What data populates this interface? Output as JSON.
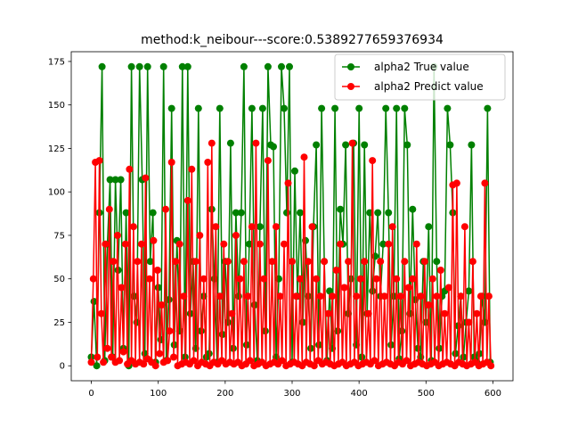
{
  "chart_data": {
    "type": "line",
    "title": "method:k_neibour---score:0.5389277659376934",
    "xlabel": "",
    "ylabel": "",
    "xlim": [
      -30,
      630
    ],
    "ylim": [
      -8.6,
      180.6
    ],
    "xticks": [
      0,
      100,
      200,
      300,
      400,
      500,
      600
    ],
    "yticks": [
      0,
      25,
      50,
      75,
      100,
      125,
      150,
      175
    ],
    "xtick_labels": [
      "0",
      "100",
      "200",
      "300",
      "400",
      "500",
      "600"
    ],
    "ytick_labels": [
      "0",
      "25",
      "50",
      "75",
      "100",
      "125",
      "150",
      "175"
    ],
    "grid": false,
    "legend_position": "top-right",
    "series": [
      {
        "name": "alpha2 True value",
        "color": "#008000",
        "marker": "circle",
        "x": [
          0,
          4,
          8,
          12,
          16,
          20,
          24,
          28,
          32,
          36,
          40,
          44,
          48,
          52,
          56,
          60,
          64,
          68,
          72,
          76,
          80,
          84,
          88,
          92,
          96,
          100,
          104,
          108,
          112,
          116,
          120,
          124,
          128,
          132,
          136,
          140,
          144,
          148,
          152,
          156,
          160,
          164,
          168,
          172,
          176,
          180,
          184,
          188,
          192,
          196,
          200,
          204,
          208,
          212,
          216,
          220,
          224,
          228,
          232,
          236,
          240,
          244,
          248,
          252,
          256,
          260,
          264,
          268,
          272,
          276,
          280,
          284,
          288,
          292,
          296,
          300,
          304,
          308,
          312,
          316,
          320,
          324,
          328,
          332,
          336,
          340,
          344,
          348,
          352,
          356,
          360,
          364,
          368,
          372,
          376,
          380,
          384,
          388,
          392,
          396,
          400,
          404,
          408,
          412,
          416,
          420,
          424,
          428,
          432,
          436,
          440,
          444,
          448,
          452,
          456,
          460,
          464,
          468,
          472,
          476,
          480,
          484,
          488,
          492,
          496,
          500,
          504,
          508,
          512,
          516,
          520,
          524,
          528,
          532,
          536,
          540,
          544,
          548,
          552,
          556,
          560,
          564,
          568,
          572,
          576,
          580,
          584,
          588,
          592,
          596
        ],
        "values": [
          5,
          37,
          0,
          88,
          172,
          3,
          70,
          107,
          5,
          107,
          55,
          107,
          10,
          88,
          0,
          172,
          40,
          25,
          172,
          107,
          7,
          172,
          60,
          88,
          2,
          45,
          15,
          172,
          3,
          38,
          148,
          12,
          72,
          20,
          172,
          5,
          172,
          30,
          60,
          10,
          148,
          20,
          40,
          5,
          7,
          90,
          50,
          2,
          148,
          18,
          60,
          25,
          128,
          10,
          88,
          40,
          88,
          172,
          12,
          70,
          148,
          35,
          3,
          80,
          148,
          20,
          172,
          127,
          126,
          5,
          50,
          172,
          148,
          88,
          172,
          2,
          112,
          40,
          88,
          25,
          72,
          40,
          10,
          80,
          127,
          12,
          148,
          60,
          3,
          43,
          10,
          148,
          20,
          90,
          70,
          127,
          30,
          50,
          128,
          12,
          148,
          5,
          127,
          30,
          88,
          43,
          63,
          88,
          40,
          70,
          148,
          88,
          12,
          40,
          148,
          4,
          20,
          148,
          127,
          30,
          90,
          38,
          10,
          5,
          60,
          25,
          80,
          3,
          172,
          60,
          10,
          40,
          43,
          148,
          127,
          88,
          7,
          23,
          40,
          5,
          25,
          43,
          127,
          5,
          2,
          7,
          40,
          25,
          148,
          2
        ]
      },
      {
        "name": "alpha2 Predict value",
        "color": "#ff0000",
        "marker": "circle",
        "x": [
          0,
          3,
          6,
          9,
          12,
          15,
          18,
          21,
          24,
          27,
          30,
          33,
          36,
          39,
          42,
          45,
          48,
          51,
          54,
          57,
          60,
          63,
          66,
          69,
          72,
          75,
          78,
          81,
          84,
          87,
          90,
          93,
          96,
          99,
          102,
          105,
          108,
          111,
          114,
          117,
          120,
          123,
          126,
          129,
          132,
          135,
          138,
          141,
          144,
          147,
          150,
          153,
          156,
          159,
          162,
          165,
          168,
          171,
          174,
          177,
          180,
          183,
          186,
          189,
          192,
          195,
          198,
          201,
          204,
          207,
          210,
          213,
          216,
          219,
          222,
          225,
          228,
          231,
          234,
          237,
          240,
          243,
          246,
          249,
          252,
          255,
          258,
          261,
          264,
          267,
          270,
          273,
          276,
          279,
          282,
          285,
          288,
          291,
          294,
          297,
          300,
          303,
          306,
          309,
          312,
          315,
          318,
          321,
          324,
          327,
          330,
          333,
          336,
          339,
          342,
          345,
          348,
          351,
          354,
          357,
          360,
          363,
          366,
          369,
          372,
          375,
          378,
          381,
          384,
          387,
          390,
          393,
          396,
          399,
          402,
          405,
          408,
          411,
          414,
          417,
          420,
          423,
          426,
          429,
          432,
          435,
          438,
          441,
          444,
          447,
          450,
          453,
          456,
          459,
          462,
          465,
          468,
          471,
          474,
          477,
          480,
          483,
          486,
          489,
          492,
          495,
          498,
          501,
          504,
          507,
          510,
          513,
          516,
          519,
          522,
          525,
          528,
          531,
          534,
          537,
          540,
          543,
          546,
          549,
          552,
          555,
          558,
          561,
          564,
          567,
          570,
          573,
          576,
          579,
          582,
          585,
          588,
          591,
          594,
          597
        ],
        "values": [
          2,
          50,
          117,
          5,
          118,
          30,
          2,
          70,
          10,
          90,
          5,
          60,
          2,
          75,
          3,
          45,
          8,
          70,
          1,
          113,
          3,
          80,
          1,
          60,
          2,
          70,
          1,
          108,
          4,
          50,
          2,
          72,
          0,
          55,
          7,
          35,
          2,
          90,
          3,
          20,
          117,
          5,
          60,
          0,
          70,
          1,
          40,
          2,
          95,
          1,
          113,
          3,
          60,
          0,
          75,
          2,
          50,
          1,
          117,
          0,
          128,
          2,
          80,
          1,
          40,
          3,
          70,
          1,
          60,
          2,
          30,
          1,
          75,
          2,
          50,
          0,
          60,
          1,
          40,
          3,
          80,
          0,
          128,
          1,
          70,
          2,
          50,
          0,
          118,
          1,
          60,
          2,
          80,
          1,
          40,
          3,
          70,
          0,
          105,
          1,
          60,
          2,
          40,
          1,
          50,
          0,
          120,
          2,
          60,
          1,
          80,
          0,
          50,
          3,
          40,
          1,
          60,
          2,
          30,
          1,
          40,
          0,
          55,
          1,
          70,
          2,
          45,
          0,
          60,
          1,
          128,
          2,
          40,
          0,
          50,
          1,
          60,
          2,
          30,
          1,
          118,
          3,
          50,
          0,
          60,
          1,
          40,
          2,
          70,
          1,
          80,
          0,
          50,
          2,
          40,
          1,
          60,
          3,
          45,
          0,
          50,
          1,
          70,
          2,
          40,
          1,
          60,
          0,
          35,
          1,
          50,
          2,
          40,
          0,
          55,
          1,
          30,
          2,
          45,
          1,
          104,
          0,
          105,
          2,
          40,
          1,
          80,
          0,
          25,
          1,
          60,
          2,
          30,
          0,
          40,
          1,
          105,
          2,
          40,
          0
        ]
      }
    ]
  }
}
